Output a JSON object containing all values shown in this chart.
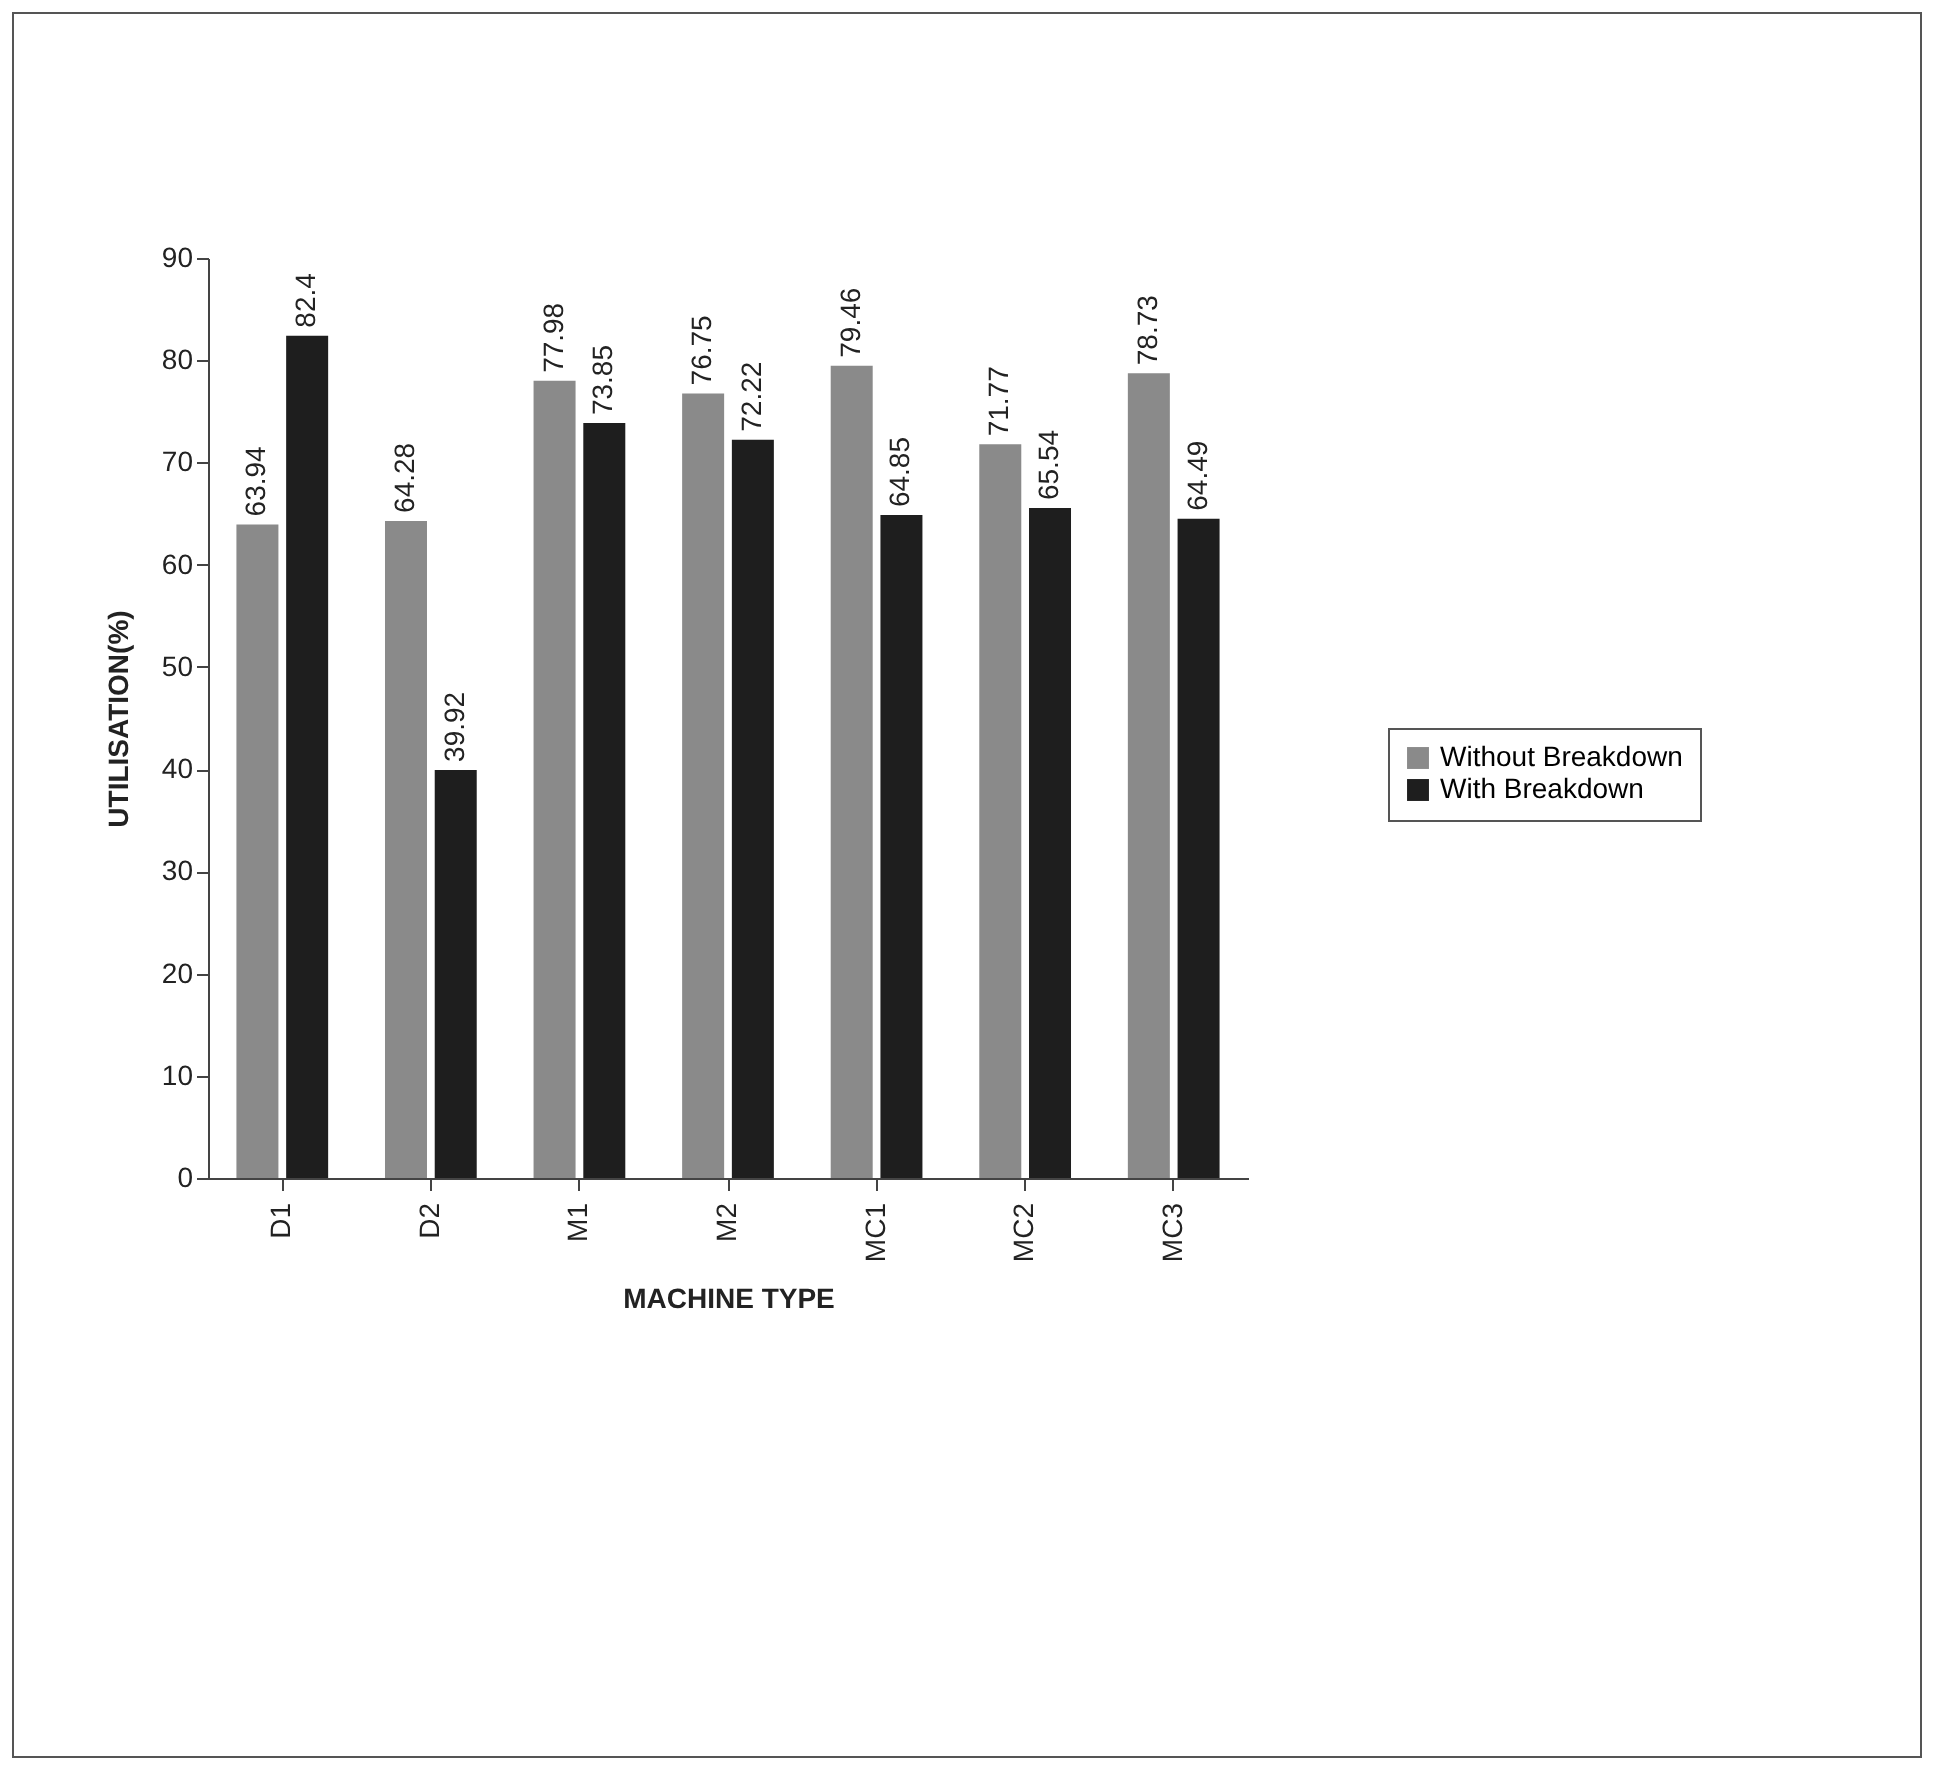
{
  "chart_data": {
    "type": "bar",
    "xlabel": "MACHINE TYPE",
    "ylabel": "UTILISATION(%)",
    "categories": [
      "D1",
      "D2",
      "M1",
      "M2",
      "MC1",
      "MC2",
      "MC3"
    ],
    "series": [
      {
        "name": "Without Breakdown",
        "color": "#8a8a8a",
        "values": [
          63.94,
          64.28,
          77.98,
          76.75,
          79.46,
          71.77,
          78.73
        ]
      },
      {
        "name": "With Breakdown",
        "color": "#1e1e1e",
        "values": [
          82.4,
          39.92,
          73.85,
          72.22,
          64.85,
          65.54,
          64.49
        ]
      }
    ],
    "ylim": [
      0,
      90
    ],
    "yticks": [
      0,
      10,
      20,
      30,
      40,
      50,
      60,
      70,
      80,
      90
    ],
    "data_labels": true,
    "legend": "right",
    "grid": false
  }
}
